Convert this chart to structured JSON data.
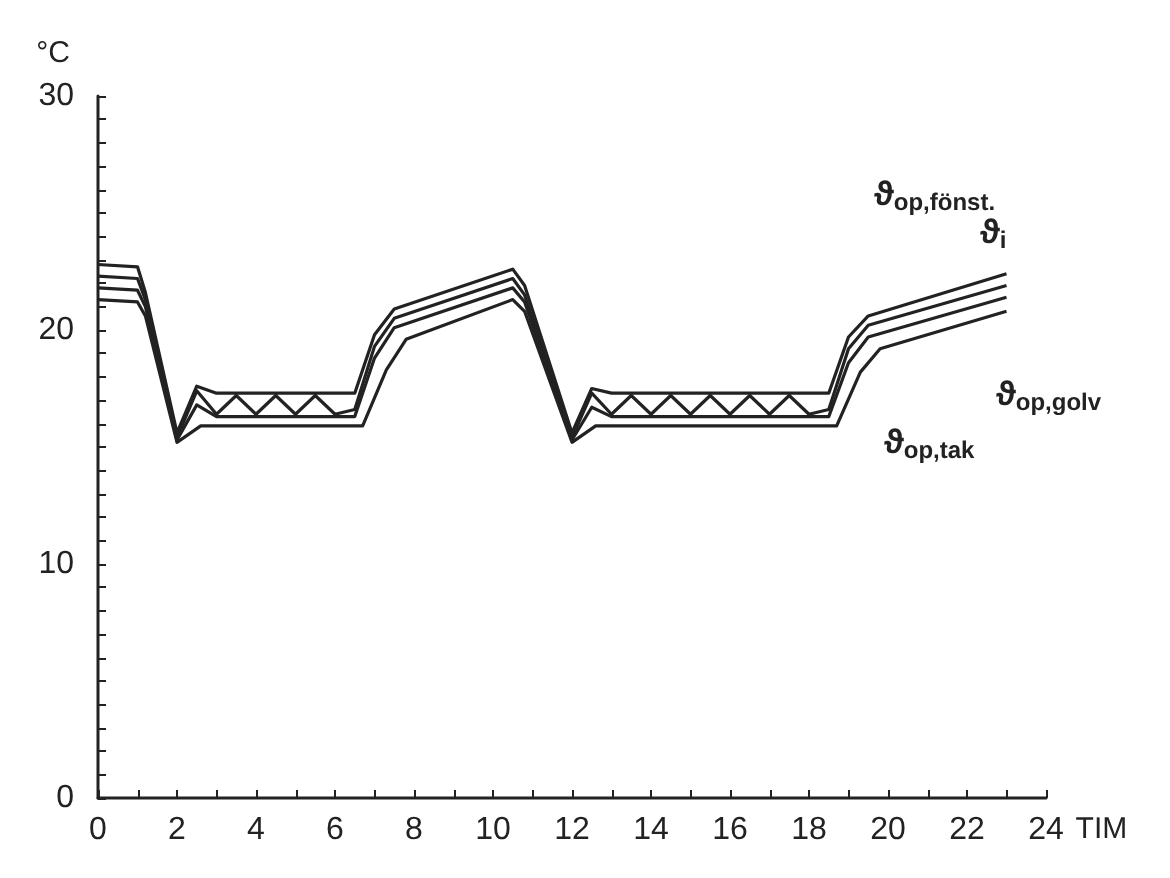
{
  "chart_data": {
    "type": "line",
    "xlabel": "TIM",
    "ylabel": "°C",
    "xlim": [
      0,
      24
    ],
    "ylim": [
      0,
      30
    ],
    "xticks": [
      0,
      {
        "value": 1,
        "label": null
      },
      2,
      {
        "value": 3,
        "label": null
      },
      4,
      {
        "value": 5,
        "label": null
      },
      6,
      {
        "value": 7,
        "label": null
      },
      8,
      {
        "value": 9,
        "label": null
      },
      10,
      {
        "value": 11,
        "label": null
      },
      12,
      {
        "value": 13,
        "label": null
      },
      14,
      {
        "value": 15,
        "label": null
      },
      16,
      {
        "value": 17,
        "label": null
      },
      18,
      {
        "value": 19,
        "label": null
      },
      20,
      {
        "value": 21,
        "label": null
      },
      22,
      {
        "value": 23,
        "label": null
      },
      24
    ],
    "yticks": [
      0,
      {
        "value": 1,
        "label": null
      },
      {
        "value": 2,
        "label": null
      },
      {
        "value": 3,
        "label": null
      },
      {
        "value": 4,
        "label": null
      },
      {
        "value": 5,
        "label": null
      },
      {
        "value": 6,
        "label": null
      },
      {
        "value": 7,
        "label": null
      },
      {
        "value": 8,
        "label": null
      },
      {
        "value": 9,
        "label": null
      },
      10,
      {
        "value": 11,
        "label": null
      },
      {
        "value": 12,
        "label": null
      },
      {
        "value": 13,
        "label": null
      },
      {
        "value": 14,
        "label": null
      },
      {
        "value": 15,
        "label": null
      },
      {
        "value": 16,
        "label": null
      },
      {
        "value": 17,
        "label": null
      },
      {
        "value": 18,
        "label": null
      },
      {
        "value": 19,
        "label": null
      },
      20,
      {
        "value": 21,
        "label": null
      },
      {
        "value": 22,
        "label": null
      },
      {
        "value": 23,
        "label": null
      },
      {
        "value": 24,
        "label": null
      },
      {
        "value": 25,
        "label": null
      },
      {
        "value": 26,
        "label": null
      },
      {
        "value": 27,
        "label": null
      },
      {
        "value": 28,
        "label": null
      },
      {
        "value": 29,
        "label": null
      },
      30
    ],
    "grid": false,
    "marker": "none",
    "line_style": "solid",
    "series": [
      {
        "color": "#222222",
        "x": [
          0,
          1,
          1.2,
          2,
          2.5,
          3,
          6.5,
          7,
          7.5,
          10.5,
          10.8,
          12,
          12.5,
          13,
          18.5,
          19,
          19.5,
          23
        ],
        "values": [
          22.8,
          22.7,
          21.6,
          15.6,
          17.6,
          17.3,
          17.3,
          19.8,
          20.9,
          22.6,
          21.9,
          15.6,
          17.5,
          17.3,
          17.3,
          19.7,
          20.6,
          22.4
        ]
      },
      {
        "color": "#222222",
        "x": [
          0,
          1,
          1.2,
          2,
          2.5,
          3,
          3.5,
          4,
          4.5,
          5,
          5.5,
          6,
          6.5,
          7,
          7.5,
          10.5,
          10.8,
          12,
          12.5,
          13,
          13.5,
          14,
          14.5,
          15,
          15.5,
          16,
          16.5,
          17,
          17.5,
          18,
          18.5,
          19,
          19.5,
          23
        ],
        "values": [
          22.3,
          22.2,
          21.3,
          15.4,
          17.4,
          16.4,
          17.2,
          16.4,
          17.2,
          16.4,
          17.2,
          16.4,
          16.6,
          19.3,
          20.5,
          22.2,
          21.5,
          15.4,
          17.3,
          16.4,
          17.2,
          16.4,
          17.2,
          16.4,
          17.2,
          16.4,
          17.2,
          16.4,
          17.2,
          16.4,
          16.6,
          19.2,
          20.2,
          21.9
        ]
      },
      {
        "color": "#222222",
        "x": [
          0,
          1,
          1.2,
          2,
          2.5,
          3,
          6.5,
          7,
          7.5,
          10.5,
          10.8,
          12,
          12.5,
          13,
          18.5,
          19,
          19.5,
          23
        ],
        "values": [
          21.8,
          21.7,
          21.0,
          15.3,
          16.8,
          16.3,
          16.3,
          18.8,
          20.1,
          21.8,
          21.2,
          15.3,
          16.7,
          16.3,
          16.3,
          18.6,
          19.7,
          21.4
        ]
      },
      {
        "color": "#222222",
        "x": [
          0,
          1,
          1.2,
          2,
          2.6,
          6.7,
          7.3,
          7.8,
          10.5,
          10.8,
          12,
          12.6,
          18.7,
          19.3,
          19.8,
          23
        ],
        "values": [
          21.3,
          21.2,
          20.6,
          15.2,
          15.9,
          15.9,
          18.3,
          19.6,
          21.3,
          20.8,
          15.2,
          15.9,
          15.9,
          18.2,
          19.2,
          20.8
        ]
      }
    ],
    "annotations": [
      "ϑ$_{op,fönst.}$",
      "ϑ$_{i}$",
      "ϑ$_{op,tak}$",
      "ϑ$_{op,golv}$"
    ]
  }
}
